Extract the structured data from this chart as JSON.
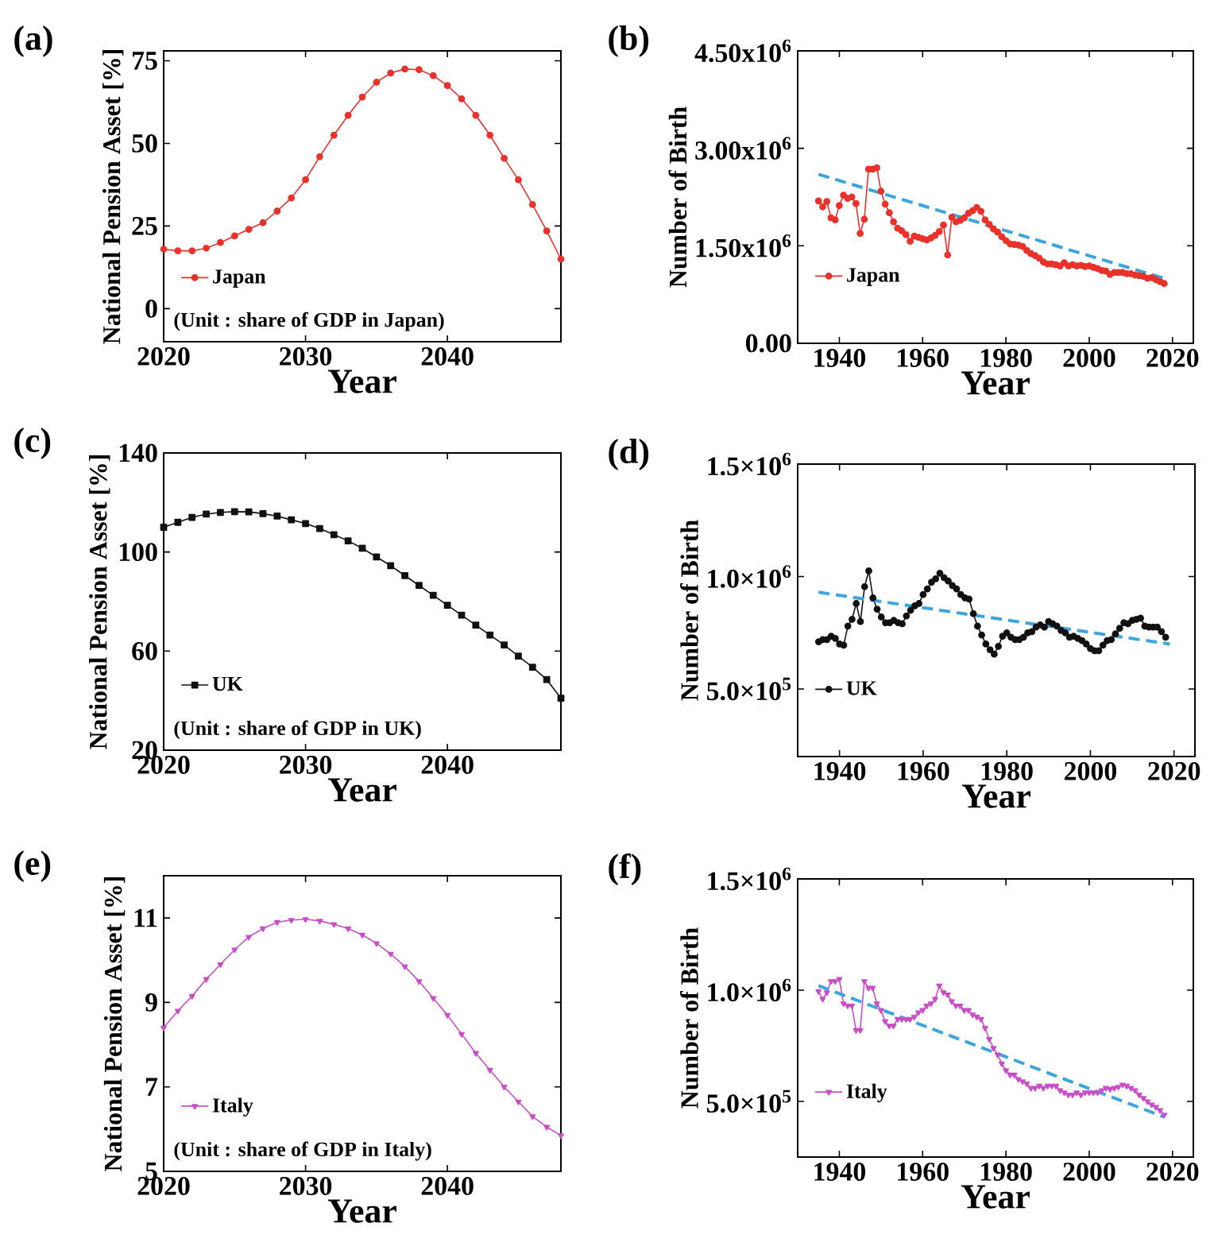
{
  "chart_data": [
    {
      "type": "line",
      "title": "(a)",
      "xlabel": "Year",
      "ylabel": "National Pension Asset [%]",
      "xlim": [
        2020,
        2048
      ],
      "ylim": [
        -10,
        78
      ],
      "xticks": [
        2020,
        2030,
        2040
      ],
      "yticks": [
        0,
        25,
        50,
        75
      ],
      "legend": "bottom left",
      "annotations": [
        "(Unit : share of GDP in Japan)"
      ],
      "x": [
        2020,
        2021,
        2022,
        2023,
        2024,
        2025,
        2026,
        2027,
        2028,
        2029,
        2030,
        2031,
        2032,
        2033,
        2034,
        2035,
        2036,
        2037,
        2038,
        2039,
        2040,
        2041,
        2042,
        2043,
        2044,
        2045,
        2046,
        2047,
        2048
      ],
      "series": [
        {
          "name": "Japan",
          "color": "#e8322b",
          "marker": "circle",
          "values": [
            18,
            17.5,
            17.5,
            18.3,
            20,
            22,
            24,
            26,
            29.5,
            33.5,
            39,
            46,
            52.5,
            58.5,
            64,
            68.5,
            71.3,
            72.5,
            72.3,
            70.5,
            67.5,
            63.5,
            58.5,
            52.5,
            45.5,
            39,
            31.5,
            23.5,
            15
          ]
        }
      ]
    },
    {
      "type": "line",
      "title": "(b)",
      "xlabel": "Year",
      "ylabel": "Number of Birth",
      "xlim": [
        1930,
        2025
      ],
      "ylim": [
        0,
        4500000
      ],
      "xticks": [
        1940,
        1960,
        1980,
        2000,
        2020
      ],
      "yticks": [
        {
          "value": 0,
          "label": "0.00"
        },
        {
          "value": 1500000,
          "label": "1.50x10$^{6}$"
        },
        {
          "value": 3000000,
          "label": "3.00x10$^{6}$"
        },
        {
          "value": 4500000,
          "label": "4.50x10$^{6}$"
        }
      ],
      "legend": "bottom left",
      "x": [
        1935,
        1936,
        1937,
        1938,
        1939,
        1940,
        1941,
        1942,
        1943,
        1944,
        1945,
        1946,
        1947,
        1948,
        1949,
        1950,
        1951,
        1952,
        1953,
        1954,
        1955,
        1956,
        1957,
        1958,
        1959,
        1960,
        1961,
        1962,
        1963,
        1964,
        1965,
        1966,
        1967,
        1968,
        1969,
        1970,
        1971,
        1972,
        1973,
        1974,
        1975,
        1976,
        1977,
        1978,
        1979,
        1980,
        1981,
        1982,
        1983,
        1984,
        1985,
        1986,
        1987,
        1988,
        1989,
        1990,
        1991,
        1992,
        1993,
        1994,
        1995,
        1996,
        1997,
        1998,
        1999,
        2000,
        2001,
        2002,
        2003,
        2004,
        2005,
        2006,
        2007,
        2008,
        2009,
        2010,
        2011,
        2012,
        2013,
        2014,
        2015,
        2016,
        2017,
        2018
      ],
      "series": [
        {
          "name": "Japan",
          "color": "#e8322b",
          "marker": "circle",
          "values": [
            2190000,
            2100000,
            2180000,
            1930000,
            1900000,
            2120000,
            2280000,
            2230000,
            2250000,
            2150000,
            1690000,
            1910000,
            2680000,
            2680000,
            2700000,
            2340000,
            2140000,
            2010000,
            1870000,
            1770000,
            1730000,
            1670000,
            1570000,
            1650000,
            1630000,
            1610000,
            1590000,
            1620000,
            1660000,
            1720000,
            1820000,
            1360000,
            1940000,
            1870000,
            1890000,
            1930000,
            2000000,
            2040000,
            2090000,
            2030000,
            1900000,
            1830000,
            1760000,
            1710000,
            1640000,
            1580000,
            1530000,
            1520000,
            1510000,
            1490000,
            1430000,
            1380000,
            1350000,
            1310000,
            1250000,
            1220000,
            1220000,
            1210000,
            1190000,
            1240000,
            1190000,
            1210000,
            1190000,
            1200000,
            1180000,
            1190000,
            1170000,
            1150000,
            1120000,
            1110000,
            1060000,
            1090000,
            1090000,
            1090000,
            1070000,
            1070000,
            1050000,
            1040000,
            1030000,
            1000000,
            1010000,
            980000,
            950000,
            920000
          ]
        },
        {
          "color": "#3da5de",
          "marker": "none",
          "line_style": "dashed",
          "x": [
            1935,
            2018
          ],
          "values": [
            2600000,
            1000000
          ]
        }
      ]
    },
    {
      "type": "line",
      "title": "(c)",
      "xlabel": "Year",
      "ylabel": "National Pension Asset [%]",
      "xlim": [
        2020,
        2048
      ],
      "ylim": [
        20,
        140
      ],
      "xticks": [
        2020,
        2030,
        2040
      ],
      "yticks": [
        20,
        60,
        100,
        140
      ],
      "legend": "bottom left",
      "annotations": [
        "(Unit : share of GDP in UK)"
      ],
      "x": [
        2020,
        2021,
        2022,
        2023,
        2024,
        2025,
        2026,
        2027,
        2028,
        2029,
        2030,
        2031,
        2032,
        2033,
        2034,
        2035,
        2036,
        2037,
        2038,
        2039,
        2040,
        2041,
        2042,
        2043,
        2044,
        2045,
        2046,
        2047,
        2048
      ],
      "series": [
        {
          "name": "UK",
          "color": "#111111",
          "marker": "square",
          "values": [
            110,
            112,
            114,
            115.3,
            116,
            116.3,
            116.2,
            115.5,
            114.5,
            113,
            111.5,
            109.5,
            107,
            104.5,
            101.5,
            98,
            94.5,
            90.5,
            86.5,
            82.5,
            78.5,
            74.5,
            70.5,
            66.5,
            62.5,
            58,
            53.5,
            48.5,
            41
          ]
        }
      ]
    },
    {
      "type": "line",
      "title": "(d)",
      "xlabel": "Year",
      "ylabel": "Number of Birth",
      "xlim": [
        1930,
        2025
      ],
      "ylim": [
        200000,
        1500000
      ],
      "xticks": [
        1940,
        1960,
        1980,
        2000,
        2020
      ],
      "yticks": [
        {
          "value": 500000,
          "label": "5.0×10$^{5}$"
        },
        {
          "value": 1000000,
          "label": "1.0×10$^{6}$"
        },
        {
          "value": 1500000,
          "label": "1.5×10$^{6}$"
        }
      ],
      "legend": "bottom left",
      "x": [
        1935,
        1936,
        1937,
        1938,
        1939,
        1940,
        1941,
        1942,
        1943,
        1944,
        1945,
        1946,
        1947,
        1948,
        1949,
        1950,
        1951,
        1952,
        1953,
        1954,
        1955,
        1956,
        1957,
        1958,
        1959,
        1960,
        1961,
        1962,
        1963,
        1964,
        1965,
        1966,
        1967,
        1968,
        1969,
        1970,
        1971,
        1972,
        1973,
        1974,
        1975,
        1976,
        1977,
        1978,
        1979,
        1980,
        1981,
        1982,
        1983,
        1984,
        1985,
        1986,
        1987,
        1988,
        1989,
        1990,
        1991,
        1992,
        1993,
        1994,
        1995,
        1996,
        1997,
        1998,
        1999,
        2000,
        2001,
        2002,
        2003,
        2004,
        2005,
        2006,
        2007,
        2008,
        2009,
        2010,
        2011,
        2012,
        2013,
        2014,
        2015,
        2016,
        2017,
        2018
      ],
      "series": [
        {
          "name": "UK",
          "color": "#111111",
          "marker": "circle",
          "values": [
            710000,
            720000,
            720000,
            735000,
            725000,
            700000,
            695000,
            780000,
            810000,
            880000,
            800000,
            955000,
            1025000,
            905000,
            855000,
            820000,
            795000,
            795000,
            805000,
            795000,
            790000,
            825000,
            850000,
            870000,
            880000,
            920000,
            945000,
            975000,
            990000,
            1015000,
            995000,
            980000,
            960000,
            945000,
            920000,
            905000,
            900000,
            835000,
            780000,
            740000,
            700000,
            675000,
            655000,
            690000,
            735000,
            750000,
            730000,
            720000,
            720000,
            730000,
            750000,
            755000,
            775000,
            785000,
            775000,
            800000,
            790000,
            780000,
            760000,
            750000,
            730000,
            735000,
            725000,
            715000,
            700000,
            680000,
            670000,
            670000,
            695000,
            715000,
            720000,
            745000,
            770000,
            795000,
            790000,
            805000,
            810000,
            815000,
            780000,
            775000,
            775000,
            775000,
            755000,
            730000
          ]
        },
        {
          "color": "#3da5de",
          "marker": "none",
          "line_style": "dashed",
          "x": [
            1935,
            2019
          ],
          "values": [
            930000,
            700000
          ]
        }
      ]
    },
    {
      "type": "line",
      "title": "(e)",
      "xlabel": "Year",
      "ylabel": "National Pension Asset [%]",
      "xlim": [
        2020,
        2048
      ],
      "ylim": [
        5,
        12
      ],
      "xticks": [
        2020,
        2030,
        2040
      ],
      "yticks": [
        5,
        7,
        9,
        11
      ],
      "legend": "bottom left",
      "annotations": [
        "(Unit : share of GDP in Italy)"
      ],
      "x": [
        2020,
        2021,
        2022,
        2023,
        2024,
        2025,
        2026,
        2027,
        2028,
        2029,
        2030,
        2031,
        2032,
        2033,
        2034,
        2035,
        2036,
        2037,
        2038,
        2039,
        2040,
        2041,
        2042,
        2043,
        2044,
        2045,
        2046,
        2047,
        2048
      ],
      "series": [
        {
          "name": "Italy",
          "color": "#c84fc8",
          "marker": "triangle",
          "values": [
            8.4,
            8.8,
            9.15,
            9.55,
            9.9,
            10.25,
            10.55,
            10.75,
            10.9,
            10.95,
            10.97,
            10.93,
            10.85,
            10.75,
            10.6,
            10.4,
            10.15,
            9.85,
            9.5,
            9.1,
            8.7,
            8.25,
            7.8,
            7.4,
            7.0,
            6.65,
            6.3,
            6.05,
            5.85
          ]
        }
      ]
    },
    {
      "type": "line",
      "title": "(f)",
      "xlabel": "Year",
      "ylabel": "Number of Birth",
      "xlim": [
        1930,
        2025
      ],
      "ylim": [
        250000,
        1500000
      ],
      "xticks": [
        1940,
        1960,
        1980,
        2000,
        2020
      ],
      "yticks": [
        {
          "value": 500000,
          "label": "5.0×10$^{5}$"
        },
        {
          "value": 1000000,
          "label": "1.0×10$^{6}$"
        },
        {
          "value": 1500000,
          "label": "1.5×10$^{6}$"
        }
      ],
      "legend": "bottom left",
      "x": [
        1935,
        1936,
        1937,
        1938,
        1939,
        1940,
        1941,
        1942,
        1943,
        1944,
        1945,
        1946,
        1947,
        1948,
        1949,
        1950,
        1951,
        1952,
        1953,
        1954,
        1955,
        1956,
        1957,
        1958,
        1959,
        1960,
        1961,
        1962,
        1963,
        1964,
        1965,
        1966,
        1967,
        1968,
        1969,
        1970,
        1971,
        1972,
        1973,
        1974,
        1975,
        1976,
        1977,
        1978,
        1979,
        1980,
        1981,
        1982,
        1983,
        1984,
        1985,
        1986,
        1987,
        1988,
        1989,
        1990,
        1991,
        1992,
        1993,
        1994,
        1995,
        1996,
        1997,
        1998,
        1999,
        2000,
        2001,
        2002,
        2003,
        2004,
        2005,
        2006,
        2007,
        2008,
        2009,
        2010,
        2011,
        2012,
        2013,
        2014,
        2015,
        2016,
        2017,
        2018
      ],
      "series": [
        {
          "name": "Italy",
          "color": "#c84fc8",
          "marker": "triangle",
          "values": [
            995000,
            960000,
            990000,
            1040000,
            1040000,
            1050000,
            940000,
            930000,
            930000,
            820000,
            820000,
            1040000,
            1010000,
            1010000,
            940000,
            910000,
            860000,
            840000,
            840000,
            870000,
            870000,
            870000,
            870000,
            880000,
            900000,
            910000,
            930000,
            940000,
            960000,
            1020000,
            990000,
            980000,
            950000,
            930000,
            930000,
            910000,
            910000,
            890000,
            880000,
            870000,
            830000,
            780000,
            740000,
            710000,
            670000,
            640000,
            620000,
            620000,
            600000,
            590000,
            580000,
            560000,
            560000,
            570000,
            560000,
            570000,
            570000,
            570000,
            550000,
            540000,
            530000,
            530000,
            540000,
            530000,
            540000,
            540000,
            540000,
            540000,
            550000,
            560000,
            555000,
            560000,
            565000,
            575000,
            570000,
            560000,
            550000,
            530000,
            515000,
            500000,
            485000,
            475000,
            460000,
            440000
          ]
        },
        {
          "color": "#3da5de",
          "marker": "none",
          "line_style": "dashed",
          "x": [
            1935,
            2018
          ],
          "values": [
            1020000,
            430000
          ]
        }
      ]
    }
  ]
}
